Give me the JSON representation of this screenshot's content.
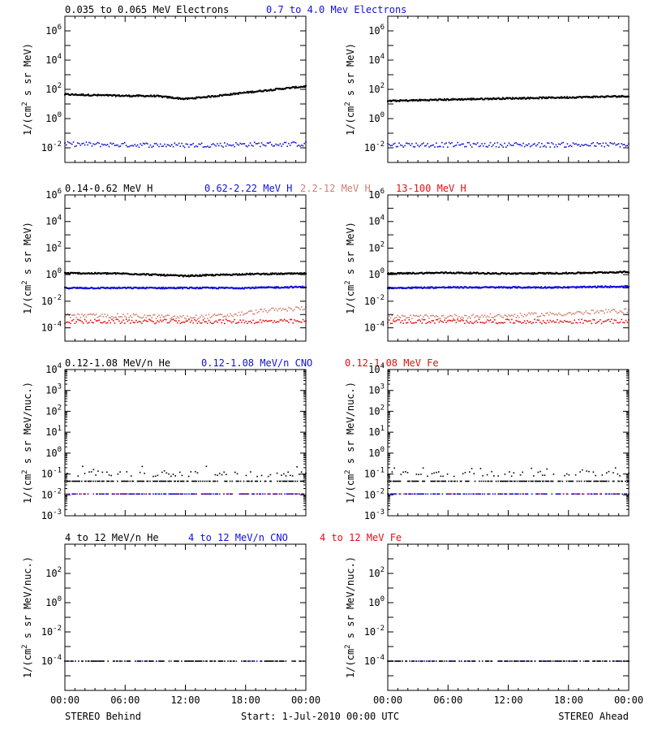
{
  "footer": {
    "left": "STEREO Behind",
    "center": "Start:  1-Jul-2010 00:00 UTC",
    "right": "STEREO Ahead"
  },
  "x_ticks": [
    "00:00",
    "06:00",
    "12:00",
    "18:00",
    "00:00"
  ],
  "colors": {
    "black": "#000000",
    "blue": "#1010d8",
    "salmon": "#d08070",
    "red": "#e01010"
  },
  "chart_data": [
    {
      "type": "scatter",
      "id": "electrons-behind",
      "scale": "log",
      "ylim": [
        0.001,
        10000000
      ],
      "ylabel": "1/(cm2 s sr MeV)",
      "ytick_exponents": [
        -2,
        0,
        2,
        4,
        6
      ],
      "legend": [
        {
          "label": "0.035 to 0.065 MeV Electrons",
          "color": "#000000"
        },
        {
          "label": "0.7 to 4.0 Mev Electrons",
          "color": "#1010d8"
        }
      ],
      "series": [
        {
          "name": "0.035 to 0.065 MeV Electrons",
          "color": "#000000",
          "style": "dense",
          "x": [
            0,
            3,
            6,
            9,
            12,
            15,
            18,
            21,
            24
          ],
          "y": [
            45,
            40,
            36,
            35,
            22,
            35,
            60,
            100,
            160
          ]
        },
        {
          "name": "0.7 to 4.0 Mev Electrons",
          "color": "#1010d8",
          "style": "noisy",
          "x": [
            0,
            6,
            12,
            18,
            24
          ],
          "y": [
            0.018,
            0.016,
            0.015,
            0.017,
            0.018
          ]
        }
      ]
    },
    {
      "type": "scatter",
      "id": "electrons-ahead",
      "scale": "log",
      "ylim": [
        0.001,
        10000000
      ],
      "ylabel": "1/(cm2 s sr MeV)",
      "ytick_exponents": [
        -2,
        0,
        2,
        4,
        6
      ],
      "legend": [],
      "series": [
        {
          "name": "0.035 to 0.065 MeV Electrons",
          "color": "#000000",
          "style": "dense",
          "x": [
            0,
            6,
            12,
            18,
            24
          ],
          "y": [
            16,
            20,
            24,
            28,
            34
          ]
        },
        {
          "name": "0.7 to 4.0 Mev Electrons",
          "color": "#1010d8",
          "style": "noisy",
          "x": [
            0,
            6,
            12,
            18,
            24
          ],
          "y": [
            0.016,
            0.016,
            0.016,
            0.016,
            0.016
          ]
        }
      ]
    },
    {
      "type": "scatter",
      "id": "protons-behind",
      "scale": "log",
      "ylim": [
        1e-05,
        1000000
      ],
      "ylabel": "1/(cm2 s sr MeV)",
      "ytick_exponents": [
        -4,
        -2,
        0,
        2,
        4,
        6
      ],
      "legend": [
        {
          "label": "0.14-0.62 MeV H",
          "color": "#000000"
        },
        {
          "label": "0.62-2.22 MeV H",
          "color": "#1010d8"
        },
        {
          "label": "2.2-12 MeV H",
          "color": "#d08070"
        },
        {
          "label": "13-100 MeV H",
          "color": "#e01010"
        }
      ],
      "series": [
        {
          "name": "0.14-0.62 MeV H",
          "color": "#000000",
          "style": "dense",
          "x": [
            0,
            6,
            12,
            18,
            24
          ],
          "y": [
            1.3,
            1.2,
            0.8,
            1.1,
            1.2
          ]
        },
        {
          "name": "0.62-2.22 MeV H",
          "color": "#1010d8",
          "style": "dense",
          "x": [
            0,
            6,
            12,
            18,
            24
          ],
          "y": [
            0.1,
            0.1,
            0.1,
            0.1,
            0.12
          ]
        },
        {
          "name": "2.2-12 MeV H",
          "color": "#d08070",
          "style": "noisy",
          "x": [
            0,
            6,
            12,
            16,
            20,
            24
          ],
          "y": [
            0.0008,
            0.0008,
            0.0006,
            0.0008,
            0.002,
            0.003
          ]
        },
        {
          "name": "13-100 MeV H",
          "color": "#e01010",
          "style": "noisy",
          "x": [
            0,
            6,
            12,
            18,
            24
          ],
          "y": [
            0.0003,
            0.0003,
            0.0003,
            0.0003,
            0.0003
          ]
        }
      ]
    },
    {
      "type": "scatter",
      "id": "protons-ahead",
      "scale": "log",
      "ylim": [
        1e-05,
        1000000
      ],
      "ylabel": "1/(cm2 s sr MeV)",
      "ytick_exponents": [
        -4,
        -2,
        0,
        2,
        4,
        6
      ],
      "legend": [],
      "series": [
        {
          "name": "0.14-0.62 MeV H",
          "color": "#000000",
          "style": "dense",
          "x": [
            0,
            6,
            12,
            18,
            24
          ],
          "y": [
            1.2,
            1.4,
            1.2,
            1.3,
            1.6
          ]
        },
        {
          "name": "0.62-2.22 MeV H",
          "color": "#1010d8",
          "style": "dense",
          "x": [
            0,
            6,
            12,
            18,
            24
          ],
          "y": [
            0.1,
            0.11,
            0.11,
            0.11,
            0.13
          ]
        },
        {
          "name": "2.2-12 MeV H",
          "color": "#d08070",
          "style": "noisy",
          "x": [
            0,
            6,
            12,
            18,
            24
          ],
          "y": [
            0.0006,
            0.0007,
            0.0008,
            0.0012,
            0.002
          ]
        },
        {
          "name": "13-100 MeV H",
          "color": "#e01010",
          "style": "noisy",
          "x": [
            0,
            6,
            12,
            18,
            24
          ],
          "y": [
            0.0003,
            0.0003,
            0.0003,
            0.0003,
            0.0003
          ]
        }
      ]
    },
    {
      "type": "scatter",
      "id": "heavy-low-behind",
      "scale": "log",
      "ylim": [
        0.001,
        10000
      ],
      "ylabel": "1/(cm2 s sr MeV/nuc.)",
      "ytick_exponents": [
        -3,
        -2,
        -1,
        0,
        1,
        2,
        3,
        4
      ],
      "legend": [
        {
          "label": "0.12-1.08 MeV/n He",
          "color": "#000000"
        },
        {
          "label": "0.12-1.08 MeV/n CNO",
          "color": "#1010d8"
        },
        {
          "label": "0.12-1.08 MeV Fe",
          "color": "#e01010"
        }
      ],
      "series": [
        {
          "name": "0.12-1.08 MeV/n He",
          "color": "#000000",
          "style": "floor",
          "x": [
            0,
            6,
            12,
            18,
            24
          ],
          "y": [
            0.045,
            0.045,
            0.045,
            0.045,
            0.045
          ]
        },
        {
          "name": "0.12-1.08 MeV/n He",
          "color": "#000000",
          "style": "sparse",
          "x": [
            0,
            6,
            12,
            18,
            24
          ],
          "y": [
            0.1,
            0.1,
            0.1,
            0.1,
            0.1
          ]
        },
        {
          "name": "0.12-1.08 MeV/n CNO",
          "color": "#1010d8",
          "style": "floor",
          "x": [
            0,
            6,
            12,
            18,
            24
          ],
          "y": [
            0.011,
            0.011,
            0.011,
            0.011,
            0.011
          ]
        },
        {
          "name": "0.12-1.08 MeV Fe",
          "color": "#e01010",
          "style": "rare",
          "x": [
            0,
            6,
            12,
            18,
            24
          ],
          "y": [
            0.011,
            0.011,
            0.011,
            0.011,
            0.011
          ]
        }
      ]
    },
    {
      "type": "scatter",
      "id": "heavy-low-ahead",
      "scale": "log",
      "ylim": [
        0.001,
        10000
      ],
      "ylabel": "1/(cm2 s sr MeV/nuc.)",
      "ytick_exponents": [
        -3,
        -2,
        -1,
        0,
        1,
        2,
        3,
        4
      ],
      "legend": [],
      "series": [
        {
          "name": "0.12-1.08 MeV/n He",
          "color": "#000000",
          "style": "floor",
          "x": [
            0,
            6,
            12,
            18,
            24
          ],
          "y": [
            0.045,
            0.045,
            0.045,
            0.045,
            0.045
          ]
        },
        {
          "name": "0.12-1.08 MeV/n He",
          "color": "#000000",
          "style": "sparse",
          "x": [
            0,
            6,
            12,
            18,
            24
          ],
          "y": [
            0.1,
            0.1,
            0.1,
            0.1,
            0.1
          ]
        },
        {
          "name": "0.12-1.08 MeV/n CNO",
          "color": "#1010d8",
          "style": "floor",
          "x": [
            0,
            6,
            12,
            18,
            24
          ],
          "y": [
            0.011,
            0.011,
            0.011,
            0.011,
            0.011
          ]
        },
        {
          "name": "0.12-1.08 MeV Fe",
          "color": "#e01010",
          "style": "rare",
          "x": [
            0,
            6,
            12,
            18,
            24
          ],
          "y": [
            0.011,
            0.011,
            0.011,
            0.011,
            0.011
          ]
        }
      ]
    },
    {
      "type": "scatter",
      "id": "heavy-high-behind",
      "scale": "log",
      "ylim": [
        1e-06,
        10000
      ],
      "ylabel": "1/(cm2 s sr MeV/nuc.)",
      "ytick_exponents": [
        -4,
        -2,
        0,
        2
      ],
      "legend": [
        {
          "label": "4 to 12 MeV/n He",
          "color": "#000000"
        },
        {
          "label": "4 to 12 MeV/n CNO",
          "color": "#1010d8"
        },
        {
          "label": "4 to 12 MeV Fe",
          "color": "#e01010"
        }
      ],
      "series": [
        {
          "name": "4 to 12 MeV/n He",
          "color": "#000000",
          "style": "floor",
          "x": [
            0,
            6,
            12,
            18,
            24
          ],
          "y": [
            0.0001,
            0.0001,
            0.0001,
            0.0001,
            0.0001
          ]
        },
        {
          "name": "4 to 12 MeV/n CNO",
          "color": "#1010d8",
          "style": "rare",
          "x": [
            0,
            6,
            12,
            18,
            24
          ],
          "y": [
            0.0001,
            0.0001,
            0.0001,
            0.0001,
            0.0001
          ]
        }
      ]
    },
    {
      "type": "scatter",
      "id": "heavy-high-ahead",
      "scale": "log",
      "ylim": [
        1e-06,
        10000
      ],
      "ylabel": "1/(cm2 s sr MeV/nuc.)",
      "ytick_exponents": [
        -4,
        -2,
        0,
        2
      ],
      "legend": [],
      "series": [
        {
          "name": "4 to 12 MeV/n He",
          "color": "#000000",
          "style": "floor",
          "x": [
            0,
            6,
            12,
            18,
            24
          ],
          "y": [
            0.0001,
            0.0001,
            0.0001,
            0.0001,
            0.0001
          ]
        },
        {
          "name": "4 to 12 MeV/n CNO",
          "color": "#1010d8",
          "style": "rare",
          "x": [
            0,
            6,
            12,
            18,
            24
          ],
          "y": [
            0.0001,
            0.0001,
            0.0001,
            0.0001,
            0.0001
          ]
        }
      ]
    }
  ]
}
